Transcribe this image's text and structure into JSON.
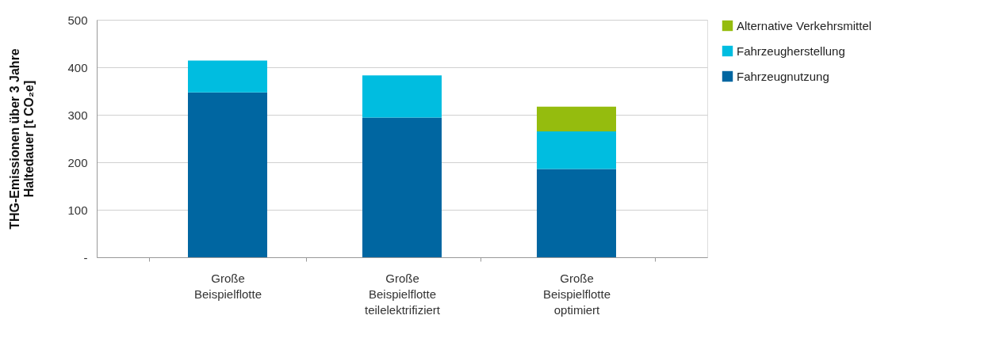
{
  "chart_data": {
    "type": "bar",
    "stacked": true,
    "ylabel": "THG-Emissionen über 3 Jahre\nHaltedauer [t CO₂e]",
    "categories": [
      "Große\nBeispielflotte",
      "Große\nBeispielflotte\nteilelektrifiziert",
      "Große\nBeispielflotte\noptimiert"
    ],
    "series": [
      {
        "name": "Fahrzeugnutzung",
        "color": "#0066a1",
        "values": [
          347,
          294,
          186
        ]
      },
      {
        "name": "Fahrzeugherstellung",
        "color": "#00bde0",
        "values": [
          67,
          89,
          79
        ]
      },
      {
        "name": "Alternative Verkehrsmittel",
        "color": "#95bc0e",
        "values": [
          null,
          null,
          52
        ]
      }
    ],
    "ylim": [
      0,
      500
    ],
    "yticks": [
      {
        "value": 0,
        "label": "-"
      },
      100,
      200,
      300,
      400,
      500
    ],
    "grid": "y",
    "legend": "right"
  }
}
